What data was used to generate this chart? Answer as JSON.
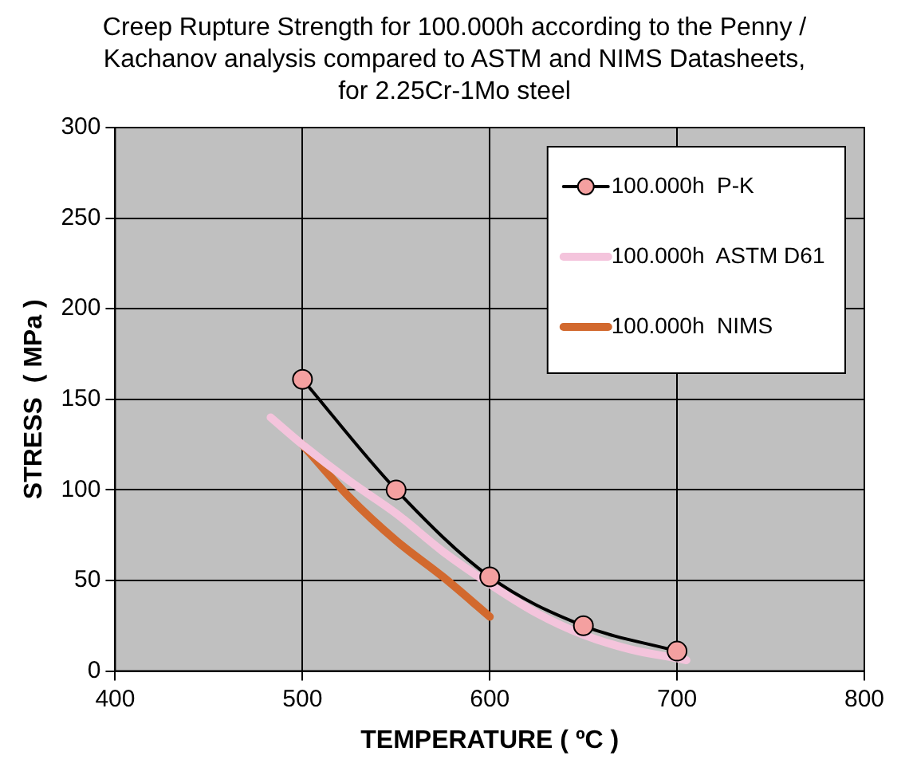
{
  "chart_data": {
    "type": "line",
    "title": "Creep Rupture Strength for 100.000h   according to the Penny / Kachanov analysis compared to  ASTM and NIMS  Datasheets,  for  2.25Cr-1Mo steel",
    "xlabel": "TEMPERATURE ( ºC )",
    "ylabel": "STRESS  ( MPa )",
    "xlim": [
      400,
      800
    ],
    "xticks": [
      400,
      500,
      600,
      700,
      800
    ],
    "ylim": [
      0,
      300
    ],
    "yticks": [
      0,
      50,
      100,
      150,
      200,
      250,
      300
    ],
    "grid": true,
    "legend": "top right",
    "series": [
      {
        "name": "100.000h  P-K",
        "color": "#000000",
        "marker": "circle",
        "x": [
          500,
          550,
          600,
          650,
          700
        ],
        "values": [
          161,
          100,
          52,
          25,
          11
        ]
      },
      {
        "name": "100.000h  ASTM D61",
        "color": "#f4c4dc",
        "marker": "none",
        "x": [
          483,
          500,
          525,
          550,
          575,
          600,
          625,
          650,
          675,
          700,
          705
        ],
        "values": [
          140,
          125,
          105,
          87,
          66,
          48,
          32,
          20,
          12,
          7,
          6
        ]
      },
      {
        "name": "100.000h  NIMS",
        "color": "#d2692e",
        "marker": "none",
        "x": [
          500,
          525,
          550,
          575,
          600
        ],
        "values": [
          125,
          96,
          72,
          52,
          30
        ]
      }
    ]
  }
}
